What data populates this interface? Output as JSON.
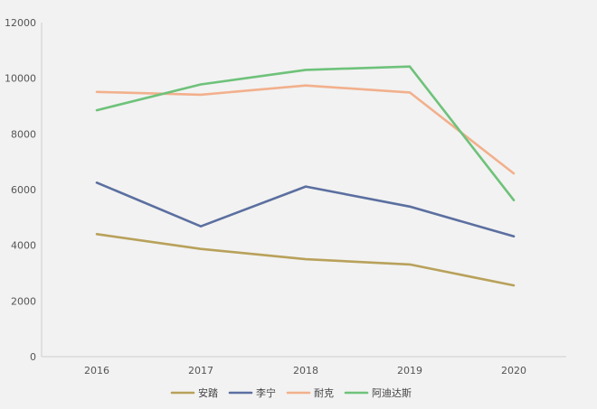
{
  "chart_data": {
    "type": "line",
    "categories": [
      "2016",
      "2017",
      "2018",
      "2019",
      "2020"
    ],
    "series": [
      {
        "name": "安踏",
        "color": "#b8a15a",
        "values": [
          4400,
          3870,
          3500,
          3310,
          2560
        ]
      },
      {
        "name": "李宁",
        "color": "#5b6fa0",
        "values": [
          6250,
          4680,
          6110,
          5390,
          4320
        ]
      },
      {
        "name": "耐克",
        "color": "#f2b08c",
        "values": [
          9510,
          9410,
          9740,
          9490,
          6580
        ]
      },
      {
        "name": "阿迪达斯",
        "color": "#6ec27a",
        "values": [
          8850,
          9780,
          10300,
          10420,
          5620
        ]
      }
    ],
    "yticks": [
      "0",
      "2000",
      "4000",
      "6000",
      "8000",
      "10000",
      "12000"
    ],
    "ylim": [
      0,
      12000
    ],
    "grid": false,
    "legend": "bottom-center",
    "title": "",
    "xlabel": "",
    "ylabel": ""
  }
}
